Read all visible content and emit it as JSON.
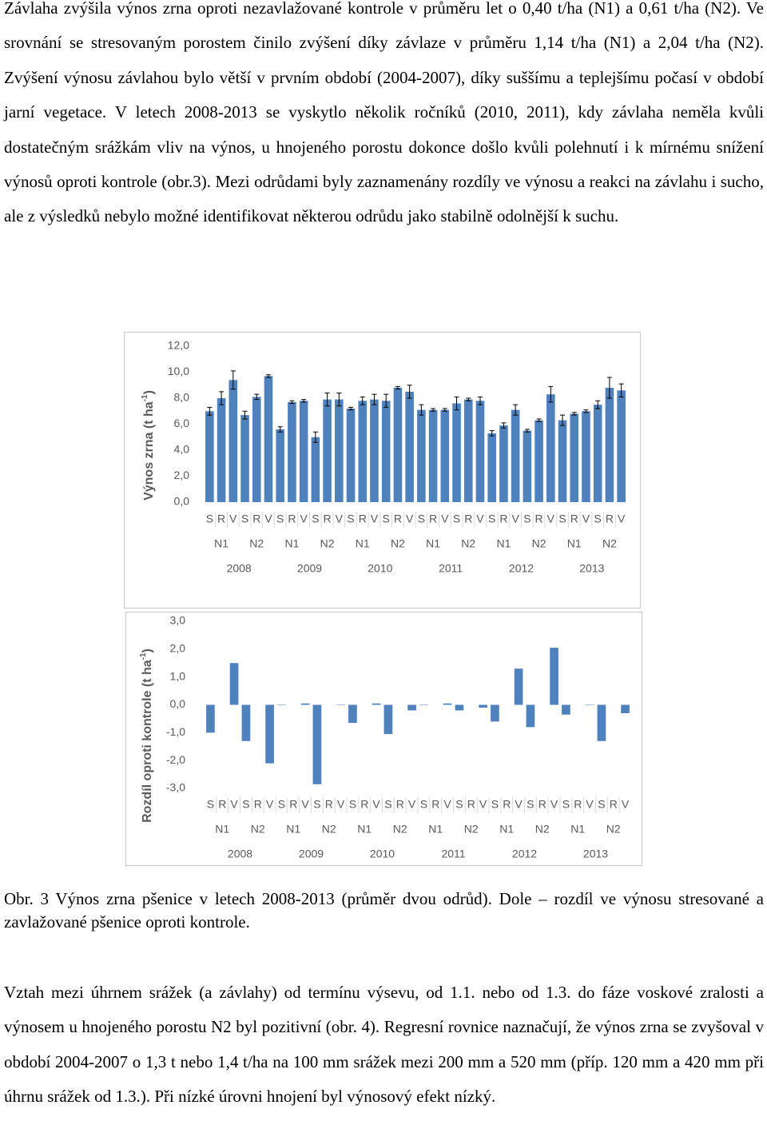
{
  "paragraphs": [
    "Závlaha zvýšila výnos zrna oproti nezavlažované kontrole v průměru let o 0,40 t/ha (N1) a 0,61 t/ha (N2). Ve srovnání se stresovaným porostem činilo zvýšení díky závlaze v průměru 1,14 t/ha (N1) a 2,04 t/ha (N2). Zvýšení výnosu závlahou bylo větší v prvním období (2004-2007), díky suššímu a teplejšímu počasí v období jarní vegetace. V letech 2008-2013 se vyskytlo několik ročníků (2010, 2011), kdy závlaha neměla kvůli dostatečným srážkám vliv na výnos, u hnojeného porostu dokonce došlo kvůli polehnutí i k mírnému snížení výnosů oproti kontrole (obr.3). Mezi odrůdami byly zaznamenány rozdíly ve výnosu a reakci na závlahu i sucho, ale z výsledků nebylo možné identifikovat některou odrůdu jako stabilně odolnější k suchu.",
    "Vztah mezi úhrnem srážek (a závlahy) od termínu výsevu, od 1.1. nebo od 1.3. do fáze voskové zralosti a výnosem u hnojeného porostu N2 byl pozitivní (obr. 4). Regresní rovnice naznačují, že výnos zrna se zvyšoval v období 2004-2007 o 1,3 t nebo 1,4 t/ha na 100 mm srážek mezi 200 mm a 520 mm (příp. 120 mm a 420 mm při úhrnu srážek od 1.3.). Při nízké úrovni hnojení byl výnosový efekt nízký."
  ],
  "caption": "Obr. 3 Výnos zrna pšenice v letech 2008-2013 (průměr dvou odrůd). Dole – rozdíl ve výnosu stresované a zavlažované pšenice oproti kontrole.",
  "chart_data": [
    {
      "type": "bar",
      "y_label": [
        "Výnos zrna (t ha",
        "-1",
        ")"
      ],
      "color": "#4f81bd",
      "categories": [
        "S",
        "R",
        "V",
        "S",
        "R",
        "V",
        "S",
        "R",
        "V",
        "S",
        "R",
        "V",
        "S",
        "R",
        "V",
        "S",
        "R",
        "V",
        "S",
        "R",
        "V",
        "S",
        "R",
        "V",
        "S",
        "R",
        "V",
        "S",
        "R",
        "V",
        "S",
        "R",
        "V",
        "S",
        "R",
        "V"
      ],
      "groups": [
        "N1",
        "N2",
        "N1",
        "N2",
        "N1",
        "N2",
        "N1",
        "N2",
        "N1",
        "N2",
        "N1",
        "N2"
      ],
      "years": [
        "2008",
        "2009",
        "2010",
        "2011",
        "2012",
        "2013"
      ],
      "values": [
        7.0,
        8.0,
        9.4,
        6.7,
        8.1,
        9.7,
        5.6,
        7.7,
        7.8,
        5.0,
        7.9,
        7.9,
        7.2,
        7.8,
        7.9,
        7.8,
        8.8,
        8.5,
        7.1,
        7.1,
        7.1,
        7.6,
        7.9,
        7.8,
        5.3,
        5.9,
        7.1,
        5.5,
        6.3,
        8.3,
        6.3,
        6.8,
        7.0,
        7.5,
        8.8,
        8.6
      ],
      "errors": [
        0.3,
        0.5,
        0.7,
        0.3,
        0.2,
        0.1,
        0.2,
        0.1,
        0.1,
        0.4,
        0.5,
        0.5,
        0.1,
        0.3,
        0.4,
        0.5,
        0.1,
        0.5,
        0.4,
        0.1,
        0.1,
        0.5,
        0.1,
        0.3,
        0.2,
        0.2,
        0.4,
        0.1,
        0.1,
        0.6,
        0.4,
        0.1,
        0.1,
        0.3,
        0.8,
        0.5
      ],
      "ylim": [
        0,
        12
      ],
      "yticks": [
        {
          "value": 0,
          "label": "0,0"
        },
        {
          "value": 2,
          "label": "2,0"
        },
        {
          "value": 4,
          "label": "4,0"
        },
        {
          "value": 6,
          "label": "6,0"
        },
        {
          "value": 8,
          "label": "8,0"
        },
        {
          "value": 10,
          "label": "10,0"
        },
        {
          "value": 12,
          "label": "12,0"
        }
      ]
    },
    {
      "type": "bar",
      "y_label": [
        "Rozdíl  oproti  kontrole (t ha",
        "-1",
        ")"
      ],
      "color": "#4f81bd",
      "categories": [
        "S",
        "R",
        "V",
        "S",
        "R",
        "V",
        "S",
        "R",
        "V",
        "S",
        "R",
        "V",
        "S",
        "R",
        "V",
        "S",
        "R",
        "V",
        "S",
        "R",
        "V",
        "S",
        "R",
        "V",
        "S",
        "R",
        "V",
        "S",
        "R",
        "V",
        "S",
        "R",
        "V",
        "S",
        "R",
        "V"
      ],
      "groups": [
        "N1",
        "N2",
        "N1",
        "N2",
        "N1",
        "N2",
        "N1",
        "N2",
        "N1",
        "N2",
        "N1",
        "N2"
      ],
      "years": [
        "2008",
        "2009",
        "2010",
        "2011",
        "2012",
        "2013"
      ],
      "values": [
        -1.0,
        null,
        1.5,
        -1.3,
        null,
        -2.1,
        0.0,
        null,
        0.05,
        -2.85,
        null,
        0.0,
        -0.65,
        null,
        0.05,
        -1.05,
        null,
        -0.2,
        0.0,
        null,
        0.05,
        -0.2,
        null,
        -0.1,
        -0.6,
        null,
        1.3,
        -0.8,
        null,
        2.05,
        -0.35,
        null,
        0.0,
        -1.3,
        null,
        -0.3
      ],
      "ylim": [
        -3,
        3
      ],
      "yticks": [
        {
          "value": -3,
          "label": "-3,0"
        },
        {
          "value": -2,
          "label": "-2,0"
        },
        {
          "value": -1,
          "label": "-1,0"
        },
        {
          "value": 0,
          "label": "0,0"
        },
        {
          "value": 1,
          "label": "1,0"
        },
        {
          "value": 2,
          "label": "2,0"
        },
        {
          "value": 3,
          "label": "3,0"
        }
      ]
    }
  ]
}
